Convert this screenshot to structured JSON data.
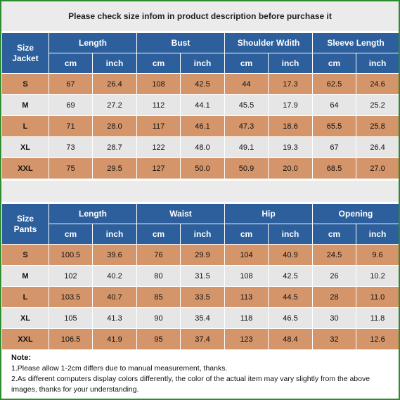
{
  "title": "Please check size infom in product description before purchase it",
  "jacket": {
    "size_label": "Size\nJacket",
    "groups": [
      "Length",
      "Bust",
      "Shoulder Wdith",
      "Sleeve Length"
    ],
    "units": [
      "cm",
      "inch"
    ],
    "rows": [
      [
        "S",
        "67",
        "26.4",
        "108",
        "42.5",
        "44",
        "17.3",
        "62.5",
        "24.6"
      ],
      [
        "M",
        "69",
        "27.2",
        "112",
        "44.1",
        "45.5",
        "17.9",
        "64",
        "25.2"
      ],
      [
        "L",
        "71",
        "28.0",
        "117",
        "46.1",
        "47.3",
        "18.6",
        "65.5",
        "25.8"
      ],
      [
        "XL",
        "73",
        "28.7",
        "122",
        "48.0",
        "49.1",
        "19.3",
        "67",
        "26.4"
      ],
      [
        "XXL",
        "75",
        "29.5",
        "127",
        "50.0",
        "50.9",
        "20.0",
        "68.5",
        "27.0"
      ]
    ]
  },
  "pants": {
    "size_label": "Size\nPants",
    "groups": [
      "Length",
      "Waist",
      "Hip",
      "Opening"
    ],
    "units": [
      "cm",
      "inch"
    ],
    "rows": [
      [
        "S",
        "100.5",
        "39.6",
        "76",
        "29.9",
        "104",
        "40.9",
        "24.5",
        "9.6"
      ],
      [
        "M",
        "102",
        "40.2",
        "80",
        "31.5",
        "108",
        "42.5",
        "26",
        "10.2"
      ],
      [
        "L",
        "103.5",
        "40.7",
        "85",
        "33.5",
        "113",
        "44.5",
        "28",
        "11.0"
      ],
      [
        "XL",
        "105",
        "41.3",
        "90",
        "35.4",
        "118",
        "46.5",
        "30",
        "11.8"
      ],
      [
        "XXL",
        "106.5",
        "41.9",
        "95",
        "37.4",
        "123",
        "48.4",
        "32",
        "12.6"
      ]
    ]
  },
  "notes": {
    "heading": "Note:",
    "lines": [
      "1.Please allow 1-2cm differs due to manual measurement, thanks.",
      "2.As different computers display colors differently, the color of the actual item may vary slightly from the above images,  thanks for your understanding."
    ]
  },
  "colors": {
    "header": "#2c5f9c",
    "row_odd": "#d4956a",
    "row_even": "#e6e6e6",
    "border": "#2e8b2e"
  }
}
